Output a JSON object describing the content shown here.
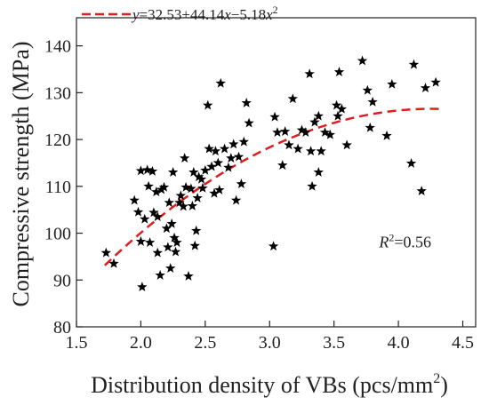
{
  "chart_data": {
    "type": "scatter",
    "xlabel": "Distribution density of VBs (pcs/mm",
    "xlabel_sup": "2",
    "xlabel_suffix": ")",
    "ylabel": "Compressive strength (MPa)",
    "xlim": [
      1.5,
      4.6
    ],
    "ylim": [
      80,
      146
    ],
    "xticks": [
      "1.5",
      "2.0",
      "2.5",
      "3.0",
      "3.5",
      "4.0",
      "4.5"
    ],
    "xtick_values": [
      1.5,
      2.0,
      2.5,
      3.0,
      3.5,
      4.0,
      4.5
    ],
    "yticks": [
      "80",
      "90",
      "100",
      "110",
      "120",
      "130",
      "140"
    ],
    "ytick_values": [
      80,
      90,
      100,
      110,
      120,
      130,
      140
    ],
    "grid": false,
    "legend_position": "top-left",
    "fit": {
      "label_parts": [
        "y",
        "=32.53+44.14",
        "x",
        "−5.18",
        "x",
        "2"
      ],
      "coefficients": [
        32.53,
        44.14,
        -5.18
      ],
      "x_range": [
        1.72,
        4.32
      ],
      "color": "#e11d1d",
      "style": "dashed"
    },
    "annotation": {
      "parts": [
        "R",
        "2",
        "=0.56"
      ],
      "x": 3.85,
      "y": 97
    },
    "marker": "star",
    "marker_color": "#000000",
    "points": [
      [
        1.73,
        95.8
      ],
      [
        1.79,
        93.5
      ],
      [
        1.95,
        107
      ],
      [
        1.98,
        104.5
      ],
      [
        2.0,
        113.3
      ],
      [
        2.0,
        98.2
      ],
      [
        2.01,
        88.5
      ],
      [
        2.03,
        103
      ],
      [
        2.05,
        113.5
      ],
      [
        2.06,
        110
      ],
      [
        2.07,
        98
      ],
      [
        2.09,
        113.2
      ],
      [
        2.1,
        104.4
      ],
      [
        2.12,
        108.8
      ],
      [
        2.13,
        103.5
      ],
      [
        2.13,
        95.8
      ],
      [
        2.15,
        91
      ],
      [
        2.16,
        109.3
      ],
      [
        2.18,
        109.8
      ],
      [
        2.2,
        101
      ],
      [
        2.21,
        97
      ],
      [
        2.22,
        106.5
      ],
      [
        2.23,
        92.5
      ],
      [
        2.24,
        102
      ],
      [
        2.25,
        113
      ],
      [
        2.26,
        99
      ],
      [
        2.27,
        96
      ],
      [
        2.28,
        98
      ],
      [
        2.3,
        106.5
      ],
      [
        2.31,
        108
      ],
      [
        2.33,
        105.7
      ],
      [
        2.34,
        116
      ],
      [
        2.35,
        109.8
      ],
      [
        2.37,
        90.8
      ],
      [
        2.39,
        109.5
      ],
      [
        2.4,
        105.8
      ],
      [
        2.41,
        113
      ],
      [
        2.42,
        97.3
      ],
      [
        2.43,
        100.5
      ],
      [
        2.44,
        107.5
      ],
      [
        2.45,
        112
      ],
      [
        2.47,
        111.5
      ],
      [
        2.48,
        109.6
      ],
      [
        2.5,
        113.4
      ],
      [
        2.52,
        127.3
      ],
      [
        2.53,
        118
      ],
      [
        2.55,
        114.2
      ],
      [
        2.57,
        108.5
      ],
      [
        2.58,
        117.5
      ],
      [
        2.6,
        115
      ],
      [
        2.61,
        109.2
      ],
      [
        2.62,
        132
      ],
      [
        2.65,
        118
      ],
      [
        2.68,
        114
      ],
      [
        2.7,
        116
      ],
      [
        2.72,
        119
      ],
      [
        2.74,
        107
      ],
      [
        2.76,
        116.3
      ],
      [
        2.78,
        110.5
      ],
      [
        2.8,
        119.5
      ],
      [
        2.82,
        127.8
      ],
      [
        2.84,
        123.5
      ],
      [
        3.03,
        97.2
      ],
      [
        3.04,
        124.8
      ],
      [
        3.06,
        121.5
      ],
      [
        3.1,
        114.5
      ],
      [
        3.12,
        121.7
      ],
      [
        3.15,
        118.8
      ],
      [
        3.18,
        128.7
      ],
      [
        3.22,
        118
      ],
      [
        3.25,
        122
      ],
      [
        3.28,
        121.5
      ],
      [
        3.31,
        134
      ],
      [
        3.32,
        117.5
      ],
      [
        3.33,
        110
      ],
      [
        3.35,
        123.7
      ],
      [
        3.38,
        125
      ],
      [
        3.38,
        113
      ],
      [
        3.4,
        117.5
      ],
      [
        3.43,
        121.5
      ],
      [
        3.47,
        121
      ],
      [
        3.52,
        127.3
      ],
      [
        3.53,
        125
      ],
      [
        3.54,
        134.4
      ],
      [
        3.56,
        126.5
      ],
      [
        3.6,
        118.8
      ],
      [
        3.72,
        136.8
      ],
      [
        3.76,
        130.5
      ],
      [
        3.78,
        122.5
      ],
      [
        3.8,
        128
      ],
      [
        3.91,
        120.8
      ],
      [
        3.95,
        131.8
      ],
      [
        4.1,
        114.9
      ],
      [
        4.12,
        136
      ],
      [
        4.18,
        109
      ],
      [
        4.21,
        131
      ],
      [
        4.29,
        132.2
      ]
    ]
  }
}
